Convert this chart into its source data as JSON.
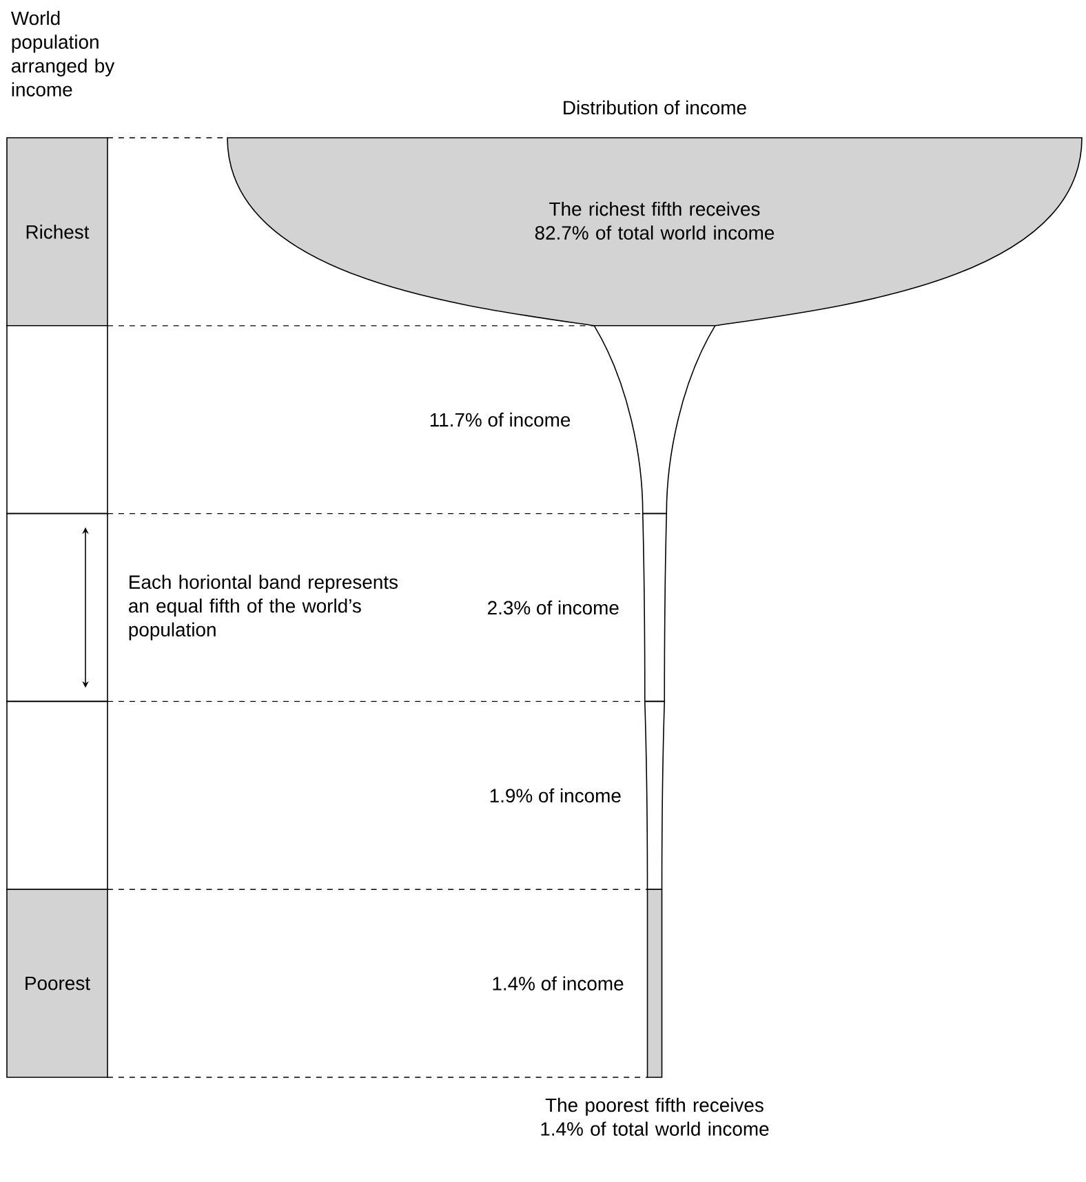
{
  "chart_data": {
    "type": "other",
    "title": "Distribution of income",
    "ylabel": "World population arranged by income",
    "categories": [
      "Richest",
      null,
      null,
      null,
      "Poorest"
    ],
    "values": [
      82.7,
      11.7,
      2.3,
      1.9,
      1.4
    ],
    "value_labels": [
      "The richest fifth receives 82.7% of total world income",
      "11.7% of income",
      "2.3% of income",
      "1.9% of income",
      "1.4% of income"
    ],
    "colors": [
      "#d3d3d3",
      "#ffffff",
      "#ffffff",
      "#ffffff",
      "#d3d3d3"
    ],
    "annotations": [
      "The poorest fifth receives 1.4% of total world income",
      "Each horiontal band represents an equal fifth of the world’s population"
    ]
  }
}
